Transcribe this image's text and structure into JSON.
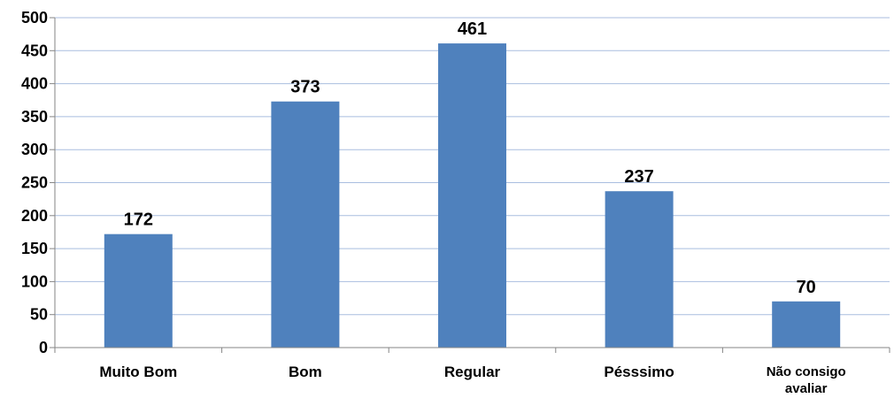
{
  "chart_data": {
    "type": "bar",
    "categories": [
      "Muito Bom",
      "Bom",
      "Regular",
      "Pésssimo",
      "Não consigo avaliar"
    ],
    "values": [
      172,
      373,
      461,
      237,
      70
    ],
    "data_labels": [
      "172",
      "373",
      "461",
      "237",
      "70"
    ],
    "title": "",
    "xlabel": "",
    "ylabel": "",
    "ylim": [
      0,
      500
    ],
    "yticks": [
      "0",
      "50",
      "100",
      "150",
      "200",
      "250",
      "300",
      "350",
      "400",
      "450",
      "500"
    ],
    "grid": true,
    "legend": "none",
    "bar_color": "#4f81bd"
  }
}
